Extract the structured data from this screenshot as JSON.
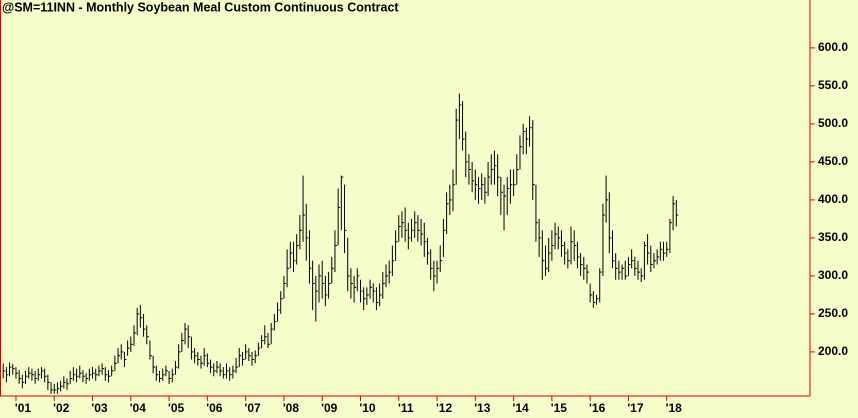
{
  "chart_data": {
    "type": "ohlc",
    "title": "@SM=11INN - Monthly  Soybean Meal Custom Continuous Contract",
    "color": "#000000",
    "axis_color": "#e00000",
    "background": "#f7fdca",
    "ylim": [
      142,
      663
    ],
    "yticks": [
      {
        "value": 200,
        "label": "200.0"
      },
      {
        "value": 250,
        "label": "250.0"
      },
      {
        "value": 300,
        "label": "300.0"
      },
      {
        "value": 350,
        "label": "350.0"
      },
      {
        "value": 400,
        "label": "400.0"
      },
      {
        "value": 450,
        "label": "450.0"
      },
      {
        "value": 500,
        "label": "500.0"
      },
      {
        "value": 550,
        "label": "550.0"
      },
      {
        "value": 600,
        "label": "600.0"
      }
    ],
    "xlim": [
      -1,
      216
    ],
    "xticks": [
      {
        "value": 4,
        "label": "'01"
      },
      {
        "value": 16,
        "label": "'02"
      },
      {
        "value": 28,
        "label": "'03"
      },
      {
        "value": 40,
        "label": "'04"
      },
      {
        "value": 52,
        "label": "'05"
      },
      {
        "value": 64,
        "label": "'06"
      },
      {
        "value": 76,
        "label": "'07"
      },
      {
        "value": 88,
        "label": "'08"
      },
      {
        "value": 100,
        "label": "'09"
      },
      {
        "value": 112,
        "label": "'10"
      },
      {
        "value": 124,
        "label": "'11"
      },
      {
        "value": 136,
        "label": "'12"
      },
      {
        "value": 148,
        "label": "'13"
      },
      {
        "value": 160,
        "label": "'14"
      },
      {
        "value": 172,
        "label": "'15"
      },
      {
        "value": 184,
        "label": "'16"
      },
      {
        "value": 196,
        "label": "'17"
      },
      {
        "value": 208,
        "label": "'18"
      }
    ],
    "high": [
      185,
      180,
      186,
      184,
      180,
      176,
      170,
      175,
      180,
      178,
      175,
      178,
      180,
      178,
      170,
      160,
      158,
      160,
      162,
      168,
      165,
      175,
      180,
      178,
      182,
      176,
      172,
      178,
      180,
      178,
      182,
      185,
      180,
      176,
      182,
      195,
      205,
      210,
      200,
      215,
      220,
      235,
      258,
      262,
      250,
      235,
      215,
      195,
      182,
      175,
      178,
      182,
      175,
      178,
      188,
      210,
      225,
      238,
      235,
      220,
      205,
      200,
      195,
      205,
      198,
      190,
      185,
      188,
      185,
      180,
      185,
      180,
      182,
      192,
      205,
      200,
      210,
      205,
      200,
      202,
      212,
      222,
      235,
      225,
      238,
      250,
      265,
      280,
      300,
      335,
      345,
      345,
      355,
      380,
      432,
      395,
      360,
      320,
      300,
      315,
      320,
      300,
      305,
      325,
      360,
      415,
      432,
      420,
      350,
      310,
      300,
      310,
      295,
      285,
      285,
      295,
      290,
      285,
      290,
      305,
      315,
      320,
      340,
      360,
      380,
      385,
      390,
      370,
      375,
      385,
      380,
      375,
      370,
      350,
      335,
      320,
      320,
      340,
      375,
      410,
      420,
      440,
      520,
      540,
      530,
      490,
      460,
      450,
      440,
      430,
      435,
      430,
      450,
      460,
      465,
      460,
      430,
      420,
      430,
      440,
      440,
      460,
      485,
      500,
      495,
      510,
      505,
      420,
      375,
      360,
      340,
      350,
      360,
      370,
      365,
      360,
      345,
      335,
      365,
      360,
      345,
      330,
      325,
      315,
      290,
      280,
      275,
      310,
      395,
      432,
      410,
      360,
      330,
      320,
      315,
      320,
      325,
      335,
      325,
      320,
      310,
      345,
      355,
      340,
      330,
      335,
      345,
      345,
      345,
      375,
      405,
      400
    ],
    "low": [
      165,
      160,
      168,
      170,
      165,
      158,
      152,
      158,
      165,
      162,
      158,
      162,
      165,
      160,
      150,
      145,
      145,
      145,
      148,
      152,
      150,
      158,
      162,
      160,
      165,
      160,
      158,
      162,
      165,
      162,
      168,
      170,
      162,
      160,
      168,
      175,
      185,
      190,
      180,
      195,
      200,
      208,
      222,
      232,
      220,
      210,
      190,
      172,
      162,
      160,
      162,
      168,
      158,
      160,
      170,
      178,
      200,
      210,
      205,
      190,
      185,
      182,
      178,
      182,
      180,
      172,
      168,
      172,
      168,
      165,
      165,
      162,
      165,
      172,
      180,
      182,
      190,
      188,
      182,
      185,
      195,
      205,
      210,
      205,
      210,
      228,
      240,
      250,
      270,
      285,
      310,
      305,
      315,
      335,
      345,
      320,
      290,
      255,
      240,
      265,
      270,
      260,
      270,
      290,
      305,
      340,
      360,
      330,
      280,
      270,
      265,
      280,
      265,
      255,
      262,
      270,
      265,
      255,
      260,
      270,
      285,
      290,
      300,
      320,
      345,
      350,
      345,
      335,
      345,
      350,
      345,
      340,
      325,
      315,
      295,
      280,
      290,
      305,
      325,
      355,
      380,
      385,
      420,
      480,
      465,
      430,
      420,
      410,
      400,
      395,
      400,
      395,
      405,
      420,
      420,
      405,
      380,
      360,
      380,
      395,
      405,
      420,
      440,
      460,
      460,
      470,
      400,
      345,
      325,
      295,
      300,
      305,
      320,
      335,
      335,
      325,
      315,
      310,
      315,
      320,
      310,
      300,
      295,
      290,
      265,
      258,
      262,
      265,
      300,
      370,
      330,
      310,
      295,
      295,
      295,
      295,
      300,
      310,
      300,
      295,
      292,
      295,
      315,
      305,
      310,
      315,
      320,
      320,
      325,
      330,
      360,
      365
    ],
    "close": [
      175,
      170,
      180,
      178,
      172,
      165,
      160,
      168,
      172,
      170,
      165,
      170,
      175,
      168,
      160,
      150,
      150,
      152,
      155,
      160,
      158,
      165,
      170,
      168,
      172,
      168,
      165,
      170,
      172,
      170,
      175,
      178,
      170,
      168,
      175,
      185,
      195,
      200,
      190,
      205,
      210,
      225,
      250,
      245,
      230,
      220,
      195,
      180,
      170,
      165,
      170,
      175,
      165,
      170,
      180,
      200,
      215,
      230,
      220,
      200,
      195,
      190,
      185,
      195,
      185,
      180,
      175,
      180,
      175,
      170,
      175,
      170,
      175,
      180,
      195,
      190,
      200,
      195,
      190,
      195,
      205,
      215,
      220,
      210,
      230,
      240,
      255,
      270,
      290,
      310,
      330,
      320,
      340,
      360,
      380,
      350,
      310,
      290,
      280,
      300,
      290,
      275,
      290,
      310,
      340,
      390,
      430,
      360,
      300,
      290,
      285,
      300,
      280,
      270,
      275,
      285,
      280,
      265,
      275,
      290,
      300,
      305,
      320,
      345,
      365,
      370,
      360,
      350,
      360,
      370,
      360,
      355,
      345,
      330,
      310,
      300,
      310,
      320,
      360,
      395,
      400,
      420,
      505,
      525,
      480,
      450,
      440,
      425,
      420,
      415,
      420,
      410,
      430,
      440,
      445,
      430,
      410,
      405,
      415,
      420,
      420,
      440,
      470,
      490,
      480,
      495,
      420,
      370,
      350,
      320,
      310,
      330,
      340,
      355,
      350,
      340,
      330,
      320,
      345,
      340,
      325,
      315,
      310,
      305,
      275,
      265,
      270,
      305,
      380,
      400,
      350,
      320,
      310,
      305,
      310,
      300,
      315,
      320,
      310,
      305,
      300,
      340,
      330,
      315,
      320,
      325,
      335,
      330,
      335,
      370,
      395,
      380
    ]
  }
}
